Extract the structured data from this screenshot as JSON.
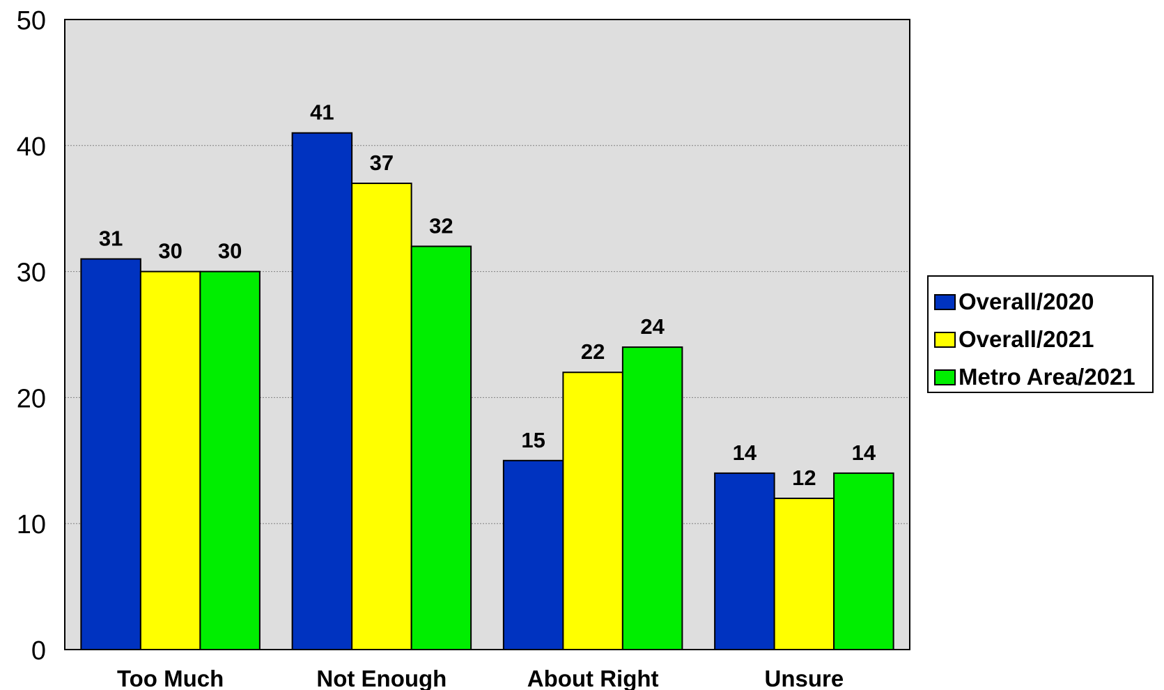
{
  "chart_data": {
    "type": "bar",
    "categories": [
      "Too Much",
      "Not Enough",
      "About Right",
      "Unsure"
    ],
    "series": [
      {
        "name": "Overall/2020",
        "color": "#0033c0",
        "values": [
          31,
          41,
          15,
          14
        ]
      },
      {
        "name": "Overall/2021",
        "color": "#ffff00",
        "values": [
          30,
          37,
          22,
          12
        ]
      },
      {
        "name": "Metro Area/2021",
        "color": "#00ee00",
        "values": [
          30,
          32,
          24,
          14
        ]
      }
    ],
    "ylim": [
      0,
      50
    ],
    "yticks": [
      0,
      10,
      20,
      30,
      40,
      50
    ],
    "gridlines": true,
    "plot_background": "#dedede",
    "legend_position": "right"
  }
}
